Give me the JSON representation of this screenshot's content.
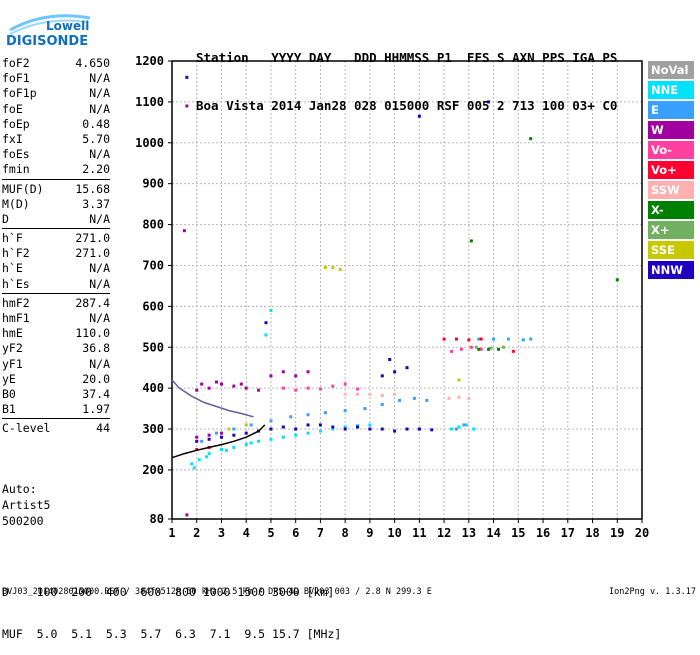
{
  "logo": {
    "top": "Lowell",
    "bottom": "DIGISONDE"
  },
  "header": {
    "row1": "Station   YYYY DAY   DDD HHMMSS P1  FFS S AXN PPS IGA PS",
    "row2": "Boa Vista 2014 Jan28 028 015000 RSF 005 2 713 100 03+ C0"
  },
  "params": [
    {
      "group": [
        {
          "name": "foF2",
          "value": "4.650"
        },
        {
          "name": "foF1",
          "value": "N/A"
        },
        {
          "name": "foF1p",
          "value": "N/A"
        },
        {
          "name": "foE",
          "value": "N/A"
        },
        {
          "name": "foEp",
          "value": "0.48"
        },
        {
          "name": "fxI",
          "value": "5.70"
        },
        {
          "name": "foEs",
          "value": "N/A"
        },
        {
          "name": "fmin",
          "value": "2.20"
        }
      ]
    },
    {
      "group": [
        {
          "name": "MUF(D)",
          "value": "15.68"
        },
        {
          "name": "M(D)",
          "value": "3.37"
        },
        {
          "name": "D",
          "value": "N/A"
        }
      ]
    },
    {
      "group": [
        {
          "name": "h`F",
          "value": "271.0"
        },
        {
          "name": "h`F2",
          "value": "271.0"
        },
        {
          "name": "h`E",
          "value": "N/A"
        },
        {
          "name": "h`Es",
          "value": "N/A"
        }
      ]
    },
    {
      "group": [
        {
          "name": "hmF2",
          "value": "287.4"
        },
        {
          "name": "hmF1",
          "value": "N/A"
        },
        {
          "name": "hmE",
          "value": "110.0"
        },
        {
          "name": "yF2",
          "value": "36.8"
        },
        {
          "name": "yF1",
          "value": "N/A"
        },
        {
          "name": "yE",
          "value": "20.0"
        },
        {
          "name": "B0",
          "value": "37.4"
        },
        {
          "name": "B1",
          "value": "1.97"
        }
      ]
    },
    {
      "group": [
        {
          "name": "C-level",
          "value": "44"
        }
      ]
    }
  ],
  "auto": [
    "Auto:",
    "Artist5",
    "500200"
  ],
  "legend": [
    {
      "label": "NoVal",
      "color": "#a0a0a0"
    },
    {
      "label": "NNE",
      "color": "#00e0ff"
    },
    {
      "label": "E",
      "color": "#3aa0ff"
    },
    {
      "label": "W",
      "color": "#a000a0"
    },
    {
      "label": "Vo-",
      "color": "#ff40a0"
    },
    {
      "label": "Vo+",
      "color": "#ff0030"
    },
    {
      "label": "SSW",
      "color": "#ffb0b0"
    },
    {
      "label": "X-",
      "color": "#008000"
    },
    {
      "label": "X+",
      "color": "#70b060"
    },
    {
      "label": "SSE",
      "color": "#c8c800"
    },
    {
      "label": "NNW",
      "color": "#2000c0"
    }
  ],
  "conversion": {
    "row1": "D    100  200  400  600  800 1000 1500 3000 [km]",
    "row2": "MUF  5.0  5.1  5.3  5.7  6.3  7.1  9.5 15.7 [MHz]"
  },
  "footer": "BVJ03_2014028015000.RSF / 384fx512h 50 kHz 2.5 km / DPS-4D BVJ03 003 / 2.8 N 299.3 E",
  "version": "Ion2Png v. 1.3.17",
  "chart_data": {
    "type": "scatter",
    "xlim": [
      1,
      20
    ],
    "ylim": [
      80,
      1200
    ],
    "x_ticks": [
      1,
      2,
      3,
      4,
      5,
      6,
      7,
      8,
      9,
      10,
      11,
      12,
      13,
      14,
      15,
      16,
      17,
      18,
      19,
      20
    ],
    "y_ticks": [
      80,
      200,
      300,
      400,
      500,
      600,
      700,
      800,
      900,
      1000,
      1100,
      1200
    ],
    "grid": true,
    "series": [
      {
        "name": "NNE",
        "color": "#00e0ff",
        "points": [
          [
            1.8,
            215
          ],
          [
            2.1,
            225
          ],
          [
            2.5,
            240
          ],
          [
            3.0,
            250
          ],
          [
            3.5,
            255
          ],
          [
            4.0,
            262
          ],
          [
            4.5,
            270
          ],
          [
            5.0,
            275
          ],
          [
            5.5,
            280
          ],
          [
            6.0,
            285
          ],
          [
            6.5,
            290
          ],
          [
            7.0,
            295
          ],
          [
            7.5,
            300
          ],
          [
            8.0,
            305
          ],
          [
            8.5,
            308
          ],
          [
            9.0,
            310
          ],
          [
            1.9,
            205
          ],
          [
            2.4,
            232
          ],
          [
            3.2,
            248
          ],
          [
            4.2,
            266
          ],
          [
            12.3,
            300
          ],
          [
            12.6,
            305
          ],
          [
            12.9,
            310
          ],
          [
            13.2,
            300
          ],
          [
            4.8,
            530
          ],
          [
            5.0,
            590
          ]
        ]
      },
      {
        "name": "E",
        "color": "#3aa0ff",
        "points": [
          [
            2.2,
            270
          ],
          [
            2.8,
            290
          ],
          [
            3.5,
            300
          ],
          [
            4.2,
            310
          ],
          [
            5.0,
            320
          ],
          [
            5.8,
            330
          ],
          [
            6.5,
            335
          ],
          [
            7.2,
            340
          ],
          [
            8.0,
            345
          ],
          [
            8.8,
            350
          ],
          [
            9.5,
            360
          ],
          [
            10.2,
            370
          ],
          [
            10.8,
            375
          ],
          [
            11.3,
            370
          ],
          [
            12.5,
            300
          ],
          [
            12.8,
            310
          ],
          [
            13.4,
            520
          ],
          [
            14.0,
            520
          ],
          [
            14.6,
            520
          ],
          [
            15.2,
            518
          ],
          [
            15.5,
            520
          ]
        ]
      },
      {
        "name": "W",
        "color": "#a000a0",
        "points": [
          [
            2.0,
            395
          ],
          [
            2.5,
            400
          ],
          [
            3.0,
            410
          ],
          [
            3.5,
            405
          ],
          [
            4.0,
            400
          ],
          [
            4.5,
            395
          ],
          [
            2.2,
            410
          ],
          [
            2.8,
            415
          ],
          [
            3.8,
            410
          ],
          [
            5.0,
            430
          ],
          [
            5.5,
            440
          ],
          [
            6.0,
            430
          ],
          [
            6.5,
            440
          ],
          [
            2.0,
            280
          ],
          [
            2.5,
            285
          ],
          [
            3.0,
            290
          ],
          [
            1.6,
            90
          ],
          [
            1.6,
            1090
          ],
          [
            1.5,
            785
          ]
        ]
      },
      {
        "name": "Vo-",
        "color": "#ff40a0",
        "points": [
          [
            5.5,
            400
          ],
          [
            6.0,
            395
          ],
          [
            6.5,
            400
          ],
          [
            7.0,
            398
          ],
          [
            7.5,
            405
          ],
          [
            8.0,
            410
          ],
          [
            8.5,
            398
          ],
          [
            12.3,
            490
          ],
          [
            12.7,
            495
          ],
          [
            13.1,
            500
          ],
          [
            13.5,
            495
          ]
        ]
      },
      {
        "name": "Vo+",
        "color": "#ff0030",
        "points": [
          [
            12.0,
            520
          ],
          [
            12.5,
            520
          ],
          [
            13.0,
            518
          ],
          [
            13.5,
            520
          ],
          [
            2.0,
            250
          ],
          [
            2.5,
            255
          ],
          [
            14.8,
            490
          ]
        ]
      },
      {
        "name": "SSW",
        "color": "#ffb0b0",
        "points": [
          [
            8.0,
            385
          ],
          [
            8.5,
            385
          ],
          [
            9.0,
            385
          ],
          [
            9.5,
            382
          ],
          [
            10.0,
            385
          ],
          [
            12.2,
            375
          ],
          [
            12.6,
            378
          ],
          [
            13.0,
            375
          ]
        ]
      },
      {
        "name": "X-",
        "color": "#008000",
        "points": [
          [
            13.4,
            495
          ],
          [
            13.8,
            495
          ],
          [
            14.2,
            495
          ],
          [
            13.1,
            760
          ],
          [
            15.5,
            1010
          ],
          [
            19.0,
            665
          ]
        ]
      },
      {
        "name": "X+",
        "color": "#70b060",
        "points": [
          [
            13.3,
            500
          ],
          [
            13.9,
            498
          ],
          [
            14.4,
            500
          ]
        ]
      },
      {
        "name": "SSE",
        "color": "#c8c800",
        "points": [
          [
            7.2,
            695
          ],
          [
            7.5,
            695
          ],
          [
            7.8,
            690
          ],
          [
            3.3,
            300
          ],
          [
            4.0,
            310
          ],
          [
            12.6,
            420
          ]
        ]
      },
      {
        "name": "NNW",
        "color": "#2000c0",
        "points": [
          [
            2.0,
            270
          ],
          [
            2.5,
            275
          ],
          [
            3.0,
            280
          ],
          [
            3.5,
            285
          ],
          [
            4.0,
            290
          ],
          [
            4.5,
            295
          ],
          [
            5.0,
            300
          ],
          [
            5.5,
            305
          ],
          [
            6.0,
            300
          ],
          [
            6.5,
            310
          ],
          [
            7.0,
            310
          ],
          [
            7.5,
            305
          ],
          [
            8.0,
            300
          ],
          [
            8.5,
            305
          ],
          [
            9.0,
            300
          ],
          [
            9.5,
            300
          ],
          [
            10.0,
            295
          ],
          [
            10.5,
            300
          ],
          [
            11.0,
            300
          ],
          [
            11.5,
            298
          ],
          [
            9.5,
            430
          ],
          [
            10.0,
            440
          ],
          [
            10.5,
            450
          ],
          [
            9.8,
            470
          ],
          [
            4.8,
            560
          ],
          [
            13.8,
            1100
          ],
          [
            11.0,
            1065
          ],
          [
            1.6,
            1160
          ]
        ]
      }
    ],
    "traces": [
      {
        "name": "profile",
        "color": "#000000",
        "points": [
          [
            1.0,
            230
          ],
          [
            1.5,
            240
          ],
          [
            2.0,
            248
          ],
          [
            2.5,
            255
          ],
          [
            3.0,
            262
          ],
          [
            3.5,
            270
          ],
          [
            4.0,
            280
          ],
          [
            4.5,
            295
          ],
          [
            4.75,
            310
          ]
        ]
      },
      {
        "name": "profile-upper",
        "color": "#6060a0",
        "points": [
          [
            1.0,
            420
          ],
          [
            1.3,
            400
          ],
          [
            1.8,
            380
          ],
          [
            2.3,
            365
          ],
          [
            2.8,
            355
          ],
          [
            3.3,
            345
          ],
          [
            3.8,
            338
          ],
          [
            4.3,
            330
          ]
        ]
      }
    ]
  }
}
